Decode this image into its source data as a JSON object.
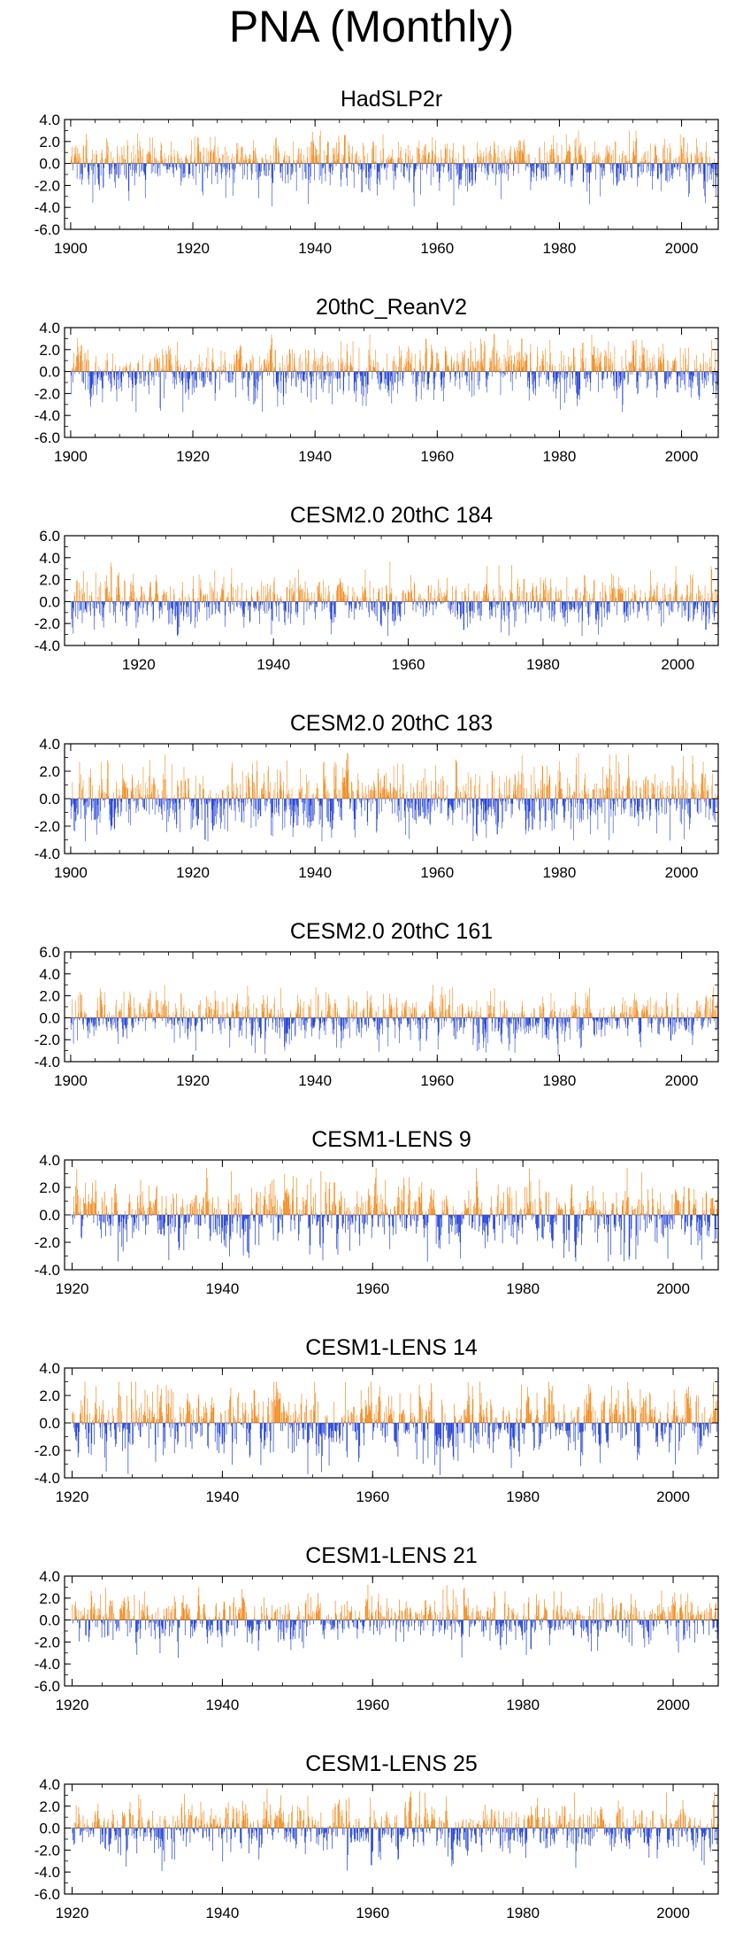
{
  "figure": {
    "title": "PNA (Monthly)",
    "positive_color": "#f28a1d",
    "negative_color": "#1f3fd6",
    "frame_color": "#000000"
  },
  "chart_data": [
    {
      "type": "bar",
      "title": "HadSLP2r",
      "xlabel": "",
      "ylabel": "",
      "xlim": [
        1899,
        2006
      ],
      "ylim": [
        -6,
        4
      ],
      "xticks": [
        1900,
        1920,
        1940,
        1960,
        1980,
        2000
      ],
      "xtick_labels": [
        "1900",
        "1920",
        "1940",
        "1960",
        "1980",
        "2000"
      ],
      "yticks": [
        4,
        2,
        0,
        -2,
        -4,
        -6
      ],
      "ytick_labels": [
        "4.0",
        "2.0",
        "0.0",
        "-2.0",
        "-4.0",
        "-6.0"
      ],
      "series": [
        {
          "name": "HadSLP2r",
          "start_year": 1900,
          "end_year": 2005,
          "monthly": true,
          "amplitude": 1.45,
          "peak_positive": 3.0,
          "peak_negative": -3.9
        }
      ]
    },
    {
      "type": "bar",
      "title": "20thC_ReanV2",
      "xlabel": "",
      "ylabel": "",
      "xlim": [
        1899,
        2006
      ],
      "ylim": [
        -6,
        4
      ],
      "xticks": [
        1900,
        1920,
        1940,
        1960,
        1980,
        2000
      ],
      "xtick_labels": [
        "1900",
        "1920",
        "1940",
        "1960",
        "1980",
        "2000"
      ],
      "yticks": [
        4,
        2,
        0,
        -2,
        -4,
        -6
      ],
      "ytick_labels": [
        "4.0",
        "2.0",
        "0.0",
        "-2.0",
        "-4.0",
        "-6.0"
      ],
      "series": [
        {
          "name": "20thC_ReanV2",
          "start_year": 1900,
          "end_year": 2005,
          "monthly": true,
          "amplitude": 1.55,
          "peak_positive": 3.4,
          "peak_negative": -3.7
        }
      ]
    },
    {
      "type": "bar",
      "title": "CESM2.0 20thC 184",
      "xlabel": "",
      "ylabel": "",
      "xlim": [
        1909,
        2006
      ],
      "ylim": [
        -4,
        6
      ],
      "xticks": [
        1920,
        1940,
        1960,
        1980,
        2000
      ],
      "xtick_labels": [
        "1920",
        "1940",
        "1960",
        "1980",
        "2000"
      ],
      "yticks": [
        6,
        4,
        2,
        0,
        -2,
        -4
      ],
      "ytick_labels": [
        "6.0",
        "4.0",
        "2.0",
        "0.0",
        "-2.0",
        "-4.0"
      ],
      "series": [
        {
          "name": "CESM2.0 20thC 184",
          "start_year": 1910,
          "end_year": 2005,
          "monthly": true,
          "amplitude": 1.4,
          "peak_positive": 3.8,
          "peak_negative": -3.2
        }
      ]
    },
    {
      "type": "bar",
      "title": "CESM2.0 20thC 183",
      "xlabel": "",
      "ylabel": "",
      "xlim": [
        1899,
        2006
      ],
      "ylim": [
        -4,
        4
      ],
      "xticks": [
        1900,
        1920,
        1940,
        1960,
        1980,
        2000
      ],
      "xtick_labels": [
        "1900",
        "1920",
        "1940",
        "1960",
        "1980",
        "2000"
      ],
      "yticks": [
        4,
        2,
        0,
        -2,
        -4
      ],
      "ytick_labels": [
        "4.0",
        "2.0",
        "0.0",
        "-2.0",
        "-4.0"
      ],
      "series": [
        {
          "name": "CESM2.0 20thC 183",
          "start_year": 1900,
          "end_year": 2005,
          "monthly": true,
          "amplitude": 1.5,
          "peak_positive": 3.3,
          "peak_negative": -3.1
        }
      ]
    },
    {
      "type": "bar",
      "title": "CESM2.0 20thC 161",
      "xlabel": "",
      "ylabel": "",
      "xlim": [
        1899,
        2006
      ],
      "ylim": [
        -4,
        6
      ],
      "xticks": [
        1900,
        1920,
        1940,
        1960,
        1980,
        2000
      ],
      "xtick_labels": [
        "1900",
        "1920",
        "1940",
        "1960",
        "1980",
        "2000"
      ],
      "yticks": [
        6,
        4,
        2,
        0,
        -2,
        -4
      ],
      "ytick_labels": [
        "6.0",
        "4.0",
        "2.0",
        "0.0",
        "-2.0",
        "-4.0"
      ],
      "series": [
        {
          "name": "CESM2.0 20thC 161",
          "start_year": 1900,
          "end_year": 2005,
          "monthly": true,
          "amplitude": 1.35,
          "peak_positive": 3.0,
          "peak_negative": -3.5
        }
      ]
    },
    {
      "type": "bar",
      "title": "CESM1-LENS 9",
      "xlabel": "",
      "ylabel": "",
      "xlim": [
        1919,
        2006
      ],
      "ylim": [
        -4,
        4
      ],
      "xticks": [
        1920,
        1940,
        1960,
        1980,
        2000
      ],
      "xtick_labels": [
        "1920",
        "1940",
        "1960",
        "1980",
        "2000"
      ],
      "yticks": [
        4,
        2,
        0,
        -2,
        -4
      ],
      "ytick_labels": [
        "4.0",
        "2.0",
        "0.0",
        "-2.0",
        "-4.0"
      ],
      "series": [
        {
          "name": "CESM1-LENS 9",
          "start_year": 1920,
          "end_year": 2005,
          "monthly": true,
          "amplitude": 1.5,
          "peak_positive": 3.4,
          "peak_negative": -3.4
        }
      ]
    },
    {
      "type": "bar",
      "title": "CESM1-LENS 14",
      "xlabel": "",
      "ylabel": "",
      "xlim": [
        1919,
        2006
      ],
      "ylim": [
        -4,
        4
      ],
      "xticks": [
        1920,
        1940,
        1960,
        1980,
        2000
      ],
      "xtick_labels": [
        "1920",
        "1940",
        "1960",
        "1980",
        "2000"
      ],
      "yticks": [
        4,
        2,
        0,
        -2,
        -4
      ],
      "ytick_labels": [
        "4.0",
        "2.0",
        "0.0",
        "-2.0",
        "-4.0"
      ],
      "series": [
        {
          "name": "CESM1-LENS 14",
          "start_year": 1920,
          "end_year": 2005,
          "monthly": true,
          "amplitude": 1.5,
          "peak_positive": 3.0,
          "peak_negative": -3.8
        }
      ]
    },
    {
      "type": "bar",
      "title": "CESM1-LENS 21",
      "xlabel": "",
      "ylabel": "",
      "xlim": [
        1919,
        2006
      ],
      "ylim": [
        -6,
        4
      ],
      "xticks": [
        1920,
        1940,
        1960,
        1980,
        2000
      ],
      "xtick_labels": [
        "1920",
        "1940",
        "1960",
        "1980",
        "2000"
      ],
      "yticks": [
        4,
        2,
        0,
        -2,
        -4,
        -6
      ],
      "ytick_labels": [
        "4.0",
        "2.0",
        "0.0",
        "-2.0",
        "-4.0",
        "-6.0"
      ],
      "series": [
        {
          "name": "CESM1-LENS 21",
          "start_year": 1920,
          "end_year": 2005,
          "monthly": true,
          "amplitude": 1.4,
          "peak_positive": 3.2,
          "peak_negative": -4.0
        }
      ]
    },
    {
      "type": "bar",
      "title": "CESM1-LENS 25",
      "xlabel": "",
      "ylabel": "",
      "xlim": [
        1919,
        2006
      ],
      "ylim": [
        -6,
        4
      ],
      "xticks": [
        1920,
        1940,
        1960,
        1980,
        2000
      ],
      "xtick_labels": [
        "1920",
        "1940",
        "1960",
        "1980",
        "2000"
      ],
      "yticks": [
        4,
        2,
        0,
        -2,
        -4,
        -6
      ],
      "ytick_labels": [
        "4.0",
        "2.0",
        "0.0",
        "-2.0",
        "-4.0",
        "-6.0"
      ],
      "series": [
        {
          "name": "CESM1-LENS 25",
          "start_year": 1920,
          "end_year": 2005,
          "monthly": true,
          "amplitude": 1.45,
          "peak_positive": 3.6,
          "peak_negative": -3.9
        }
      ]
    }
  ]
}
